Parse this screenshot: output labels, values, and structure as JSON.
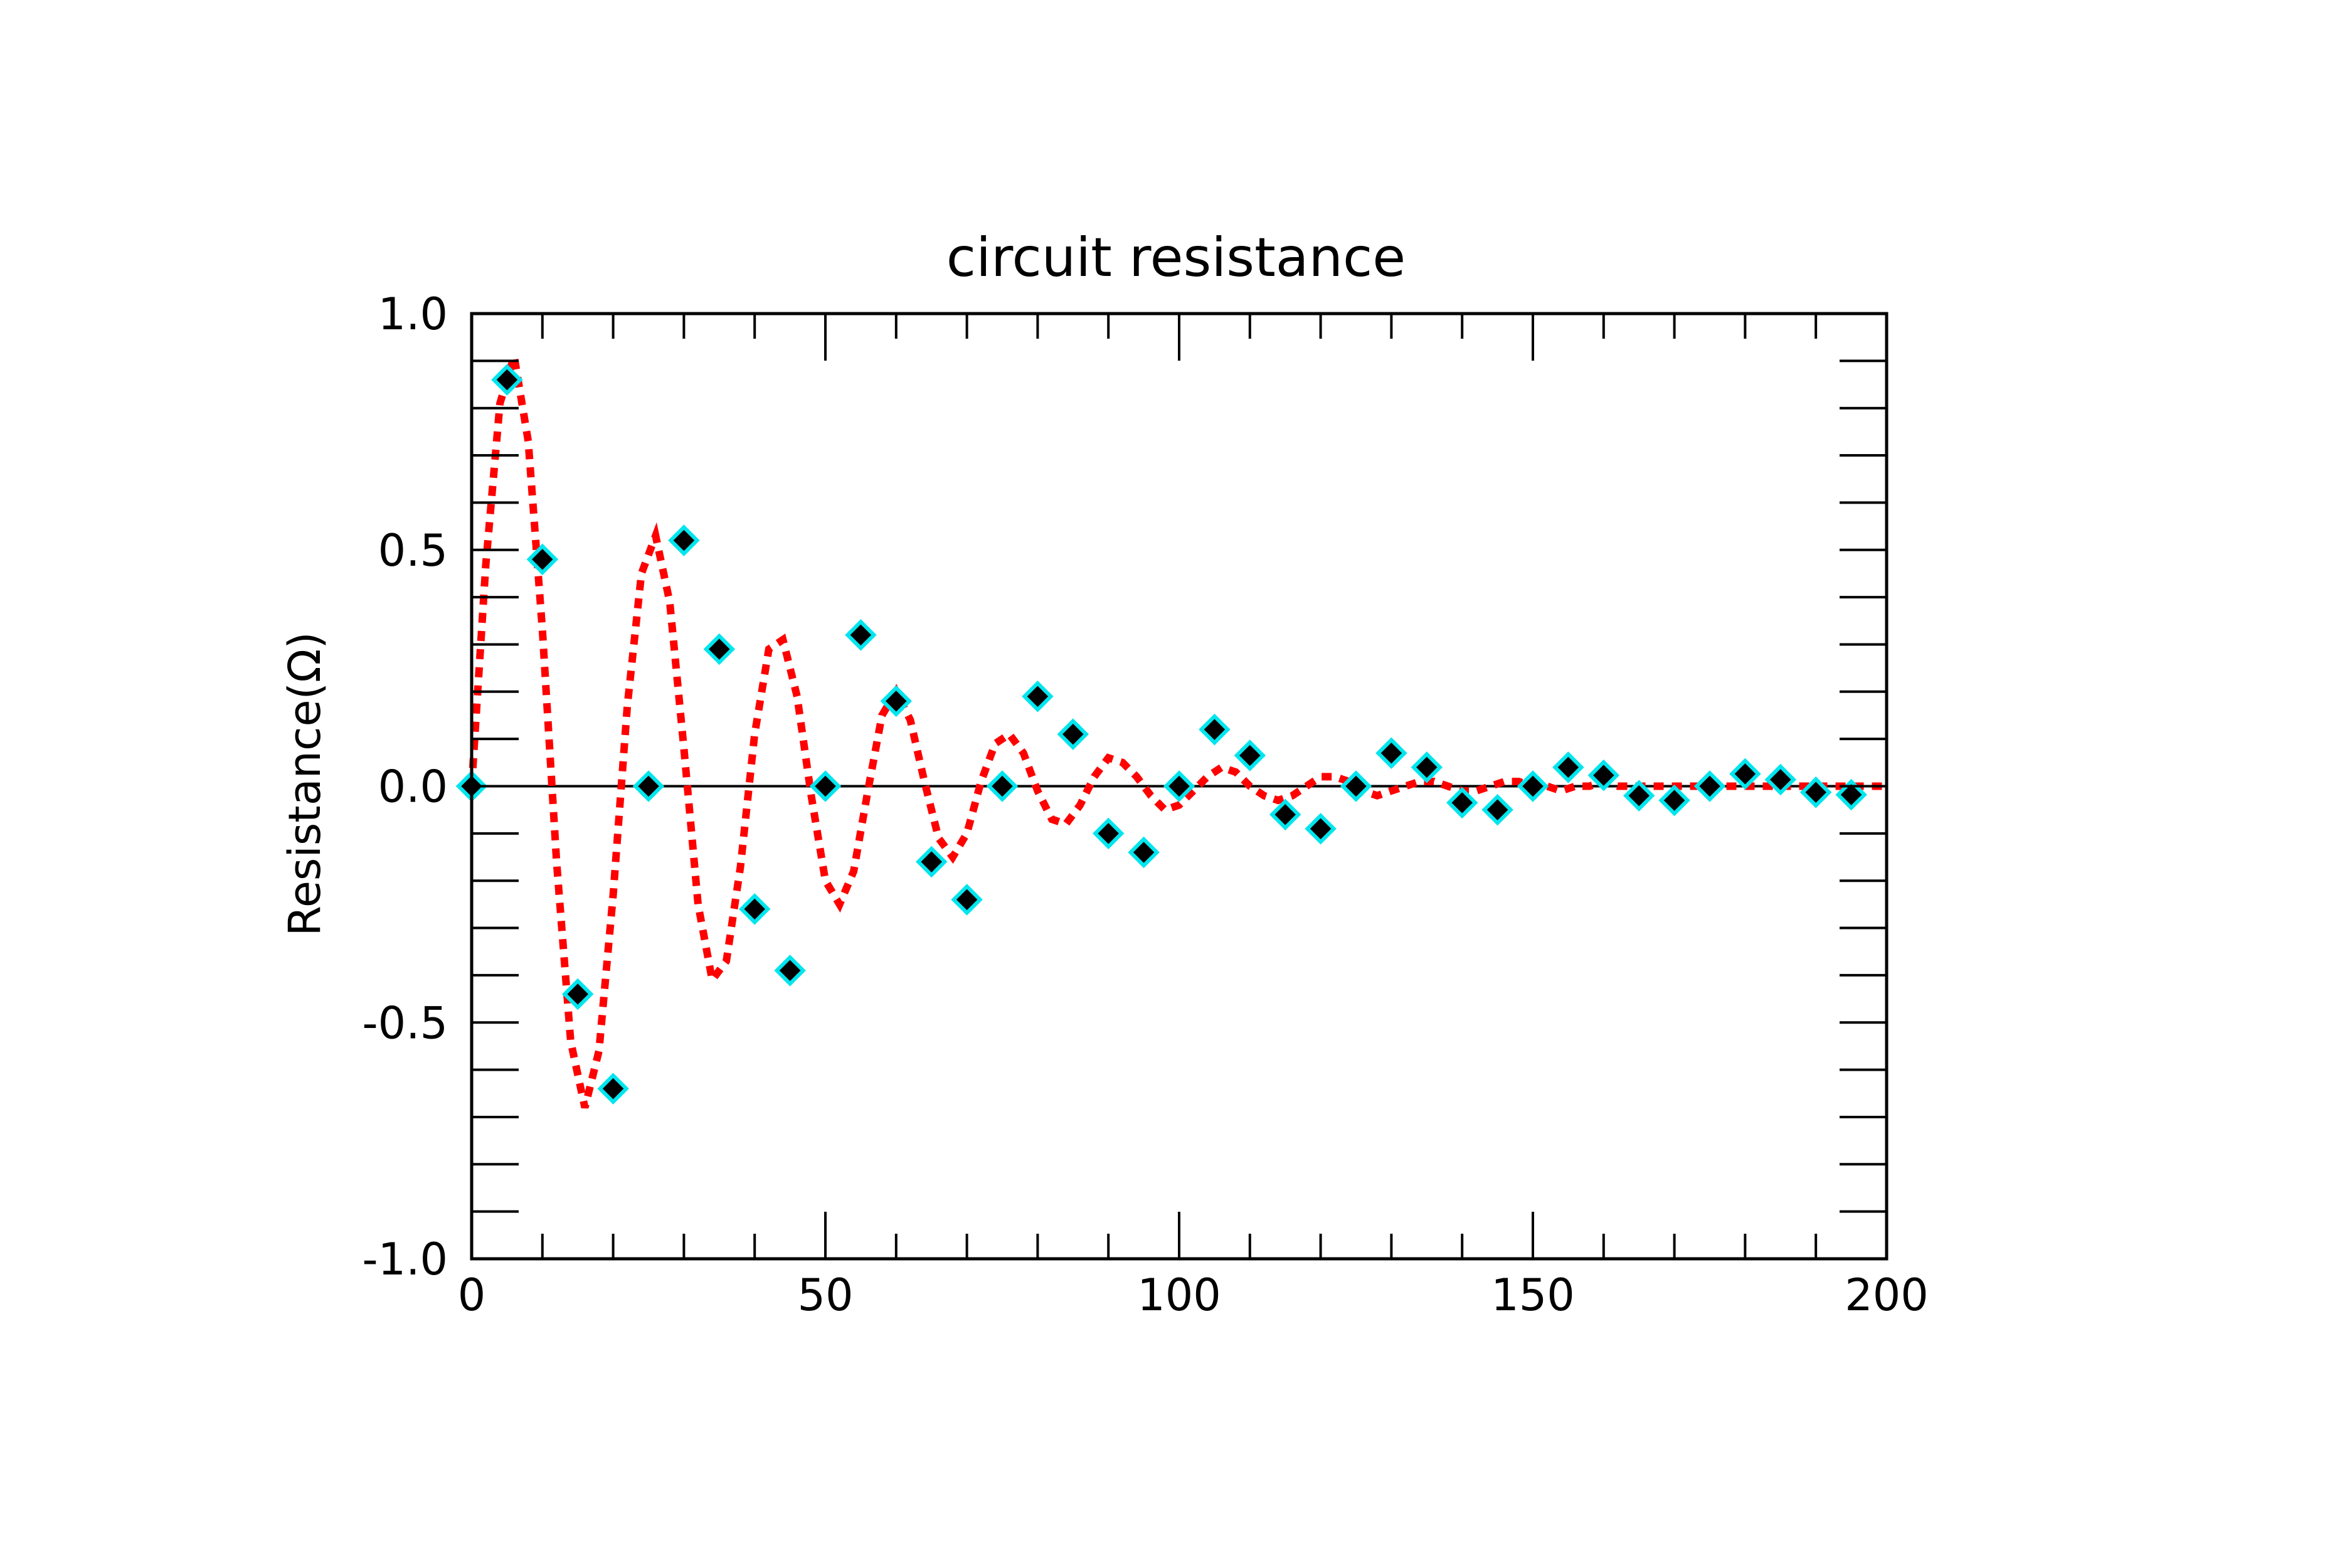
{
  "chart_data": {
    "type": "scatter",
    "title": "circuit resistance",
    "xlabel": "",
    "ylabel": "Resistance(Ω)",
    "xlim": [
      0,
      200
    ],
    "ylim": [
      -1.0,
      1.0
    ],
    "x_ticks": [
      0,
      50,
      100,
      150,
      200
    ],
    "x_tick_labels": [
      "0",
      "50",
      "100",
      "150",
      "200"
    ],
    "y_ticks": [
      -1.0,
      -0.5,
      0.0,
      0.5,
      1.0
    ],
    "y_tick_labels": [
      "-1.0",
      "-0.5",
      "0.0",
      "0.5",
      "1.0"
    ],
    "grid": false,
    "legend": "none",
    "series": [
      {
        "kind": "line",
        "style": "dotted",
        "color": "#ff0000",
        "x": [
          0,
          2,
          4,
          6,
          8,
          10,
          12,
          14,
          16,
          18,
          20,
          22,
          24,
          26,
          28,
          30,
          32,
          34,
          36,
          38,
          40,
          42,
          44,
          46,
          48,
          50,
          52,
          54,
          56,
          58,
          60,
          62,
          64,
          66,
          68,
          70,
          72,
          74,
          76,
          78,
          80,
          82,
          84,
          86,
          88,
          90,
          92,
          94,
          96,
          98,
          100,
          102,
          104,
          106,
          108,
          110,
          112,
          114,
          116,
          118,
          120,
          122,
          124,
          126,
          128,
          130,
          132,
          134,
          136,
          138,
          140,
          142,
          144,
          146,
          148,
          150,
          152,
          154,
          156,
          158,
          160,
          162,
          164,
          166,
          168,
          170,
          172,
          174,
          176,
          178,
          180,
          182,
          184,
          186,
          188,
          190,
          192,
          194,
          196,
          198,
          200
        ],
        "y": [
          0.0,
          0.47,
          0.81,
          0.91,
          0.73,
          0.33,
          -0.16,
          -0.54,
          -0.68,
          -0.56,
          -0.23,
          0.17,
          0.45,
          0.53,
          0.39,
          0.08,
          -0.25,
          -0.41,
          -0.37,
          -0.17,
          0.11,
          0.29,
          0.31,
          0.19,
          -0.02,
          -0.2,
          -0.25,
          -0.18,
          -0.01,
          0.15,
          0.2,
          0.14,
          0.01,
          -0.11,
          -0.15,
          -0.1,
          0.01,
          0.09,
          0.11,
          0.07,
          -0.01,
          -0.07,
          -0.08,
          -0.04,
          0.02,
          0.06,
          0.05,
          0.02,
          -0.02,
          -0.05,
          -0.04,
          -0.01,
          0.02,
          0.04,
          0.03,
          0.0,
          -0.02,
          -0.03,
          -0.02,
          0.0,
          0.02,
          0.02,
          0.01,
          -0.01,
          -0.02,
          -0.01,
          0.0,
          0.01,
          0.01,
          0.0,
          -0.01,
          -0.01,
          0.0,
          0.01,
          0.01,
          0.0,
          0.0,
          -0.01,
          0.0,
          0.0,
          0.01,
          0.0,
          0.0,
          0.0,
          0.0,
          0.0,
          0.0,
          0.0,
          0.0,
          0.0,
          0.0,
          0.0,
          0.0,
          0.0,
          0.0,
          0.0,
          0.0,
          0.0,
          0.0,
          0.0,
          0.0
        ]
      },
      {
        "kind": "markers",
        "marker": "diamond",
        "edge_color": "#00e5ee",
        "face_color": "#000000",
        "x": [
          0,
          5,
          10,
          15,
          20,
          25,
          30,
          35,
          40,
          45,
          50,
          55,
          60,
          65,
          70,
          75,
          80,
          85,
          90,
          95,
          100,
          105,
          110,
          115,
          120,
          125,
          130,
          135,
          140,
          145,
          150,
          155,
          160,
          165,
          170,
          175,
          180,
          185,
          190,
          195
        ],
        "y": [
          0.0,
          0.86,
          0.48,
          -0.44,
          -0.64,
          0.0,
          0.52,
          0.29,
          -0.26,
          -0.39,
          0.0,
          0.32,
          0.18,
          -0.16,
          -0.24,
          0.0,
          0.19,
          0.11,
          -0.1,
          -0.14,
          0.0,
          0.12,
          0.065,
          -0.06,
          -0.09,
          0.0,
          0.07,
          0.04,
          -0.035,
          -0.05,
          0.0,
          0.04,
          0.023,
          -0.02,
          -0.03,
          0.0,
          0.026,
          0.014,
          -0.013,
          -0.018
        ]
      }
    ]
  }
}
